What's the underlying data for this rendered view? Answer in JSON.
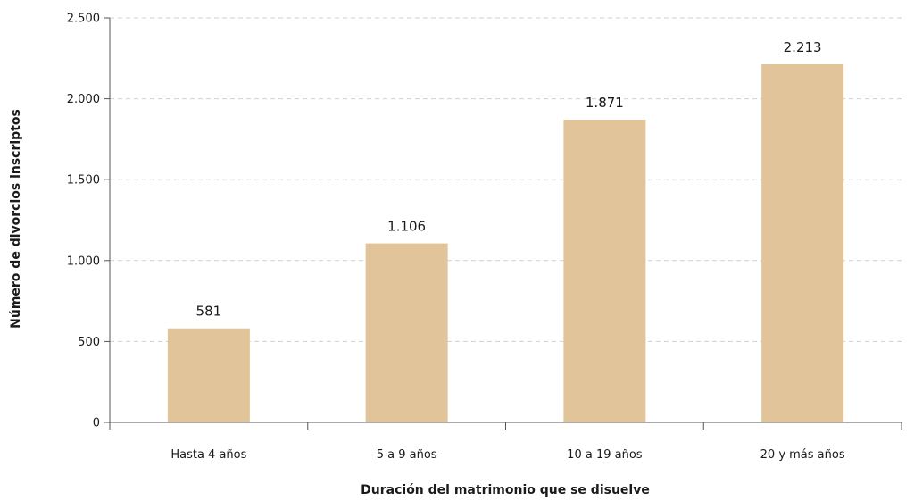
{
  "chart_data": {
    "type": "bar",
    "title": "",
    "xlabel": "Duración del matrimonio que se disuelve",
    "ylabel": "Número de divorcios inscriptos",
    "categories": [
      "Hasta 4 años",
      "5 a 9 años",
      "10 a 19 años",
      "20 y más años"
    ],
    "values": [
      581,
      1106,
      1871,
      2213
    ],
    "value_labels": [
      "581",
      "1.106",
      "1.871",
      "2.213"
    ],
    "ylim": [
      0,
      2500
    ],
    "yticks": [
      0,
      500,
      1000,
      1500,
      2000,
      2500
    ],
    "ytick_labels": [
      "0",
      "500",
      "1.000",
      "1.500",
      "2.000",
      "2.500"
    ],
    "grid": true,
    "legend": "none",
    "colors": {
      "bar": "#e2c49b",
      "grid": "#cfcfcf",
      "axis": "#555555",
      "text": "#1a1a1a"
    }
  }
}
